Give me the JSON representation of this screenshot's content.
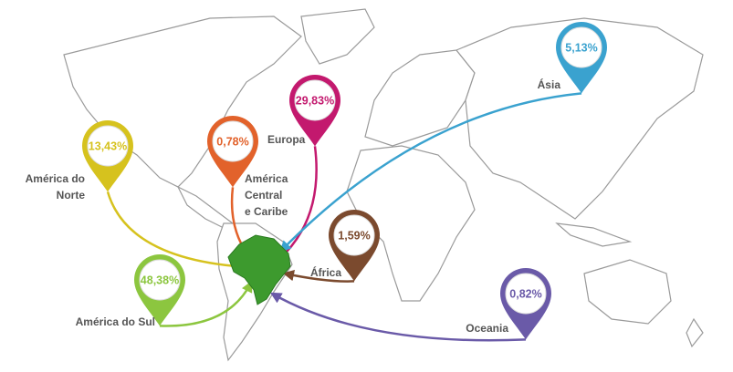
{
  "regions": [
    {
      "name": [
        "América do",
        "Norte"
      ],
      "value": "13,43%"
    },
    {
      "name": [
        "América",
        "Central",
        "e Caribe"
      ],
      "value": "0,78%"
    },
    {
      "name": [
        "Europa"
      ],
      "value": "29,83%"
    },
    {
      "name": [
        "Ásia"
      ],
      "value": "5,13%"
    },
    {
      "name": [
        "África"
      ],
      "value": "1,59%"
    },
    {
      "name": [
        "Oceania"
      ],
      "value": "0,82%"
    },
    {
      "name": [
        "América do Sul"
      ],
      "value": "48,38%"
    }
  ]
}
